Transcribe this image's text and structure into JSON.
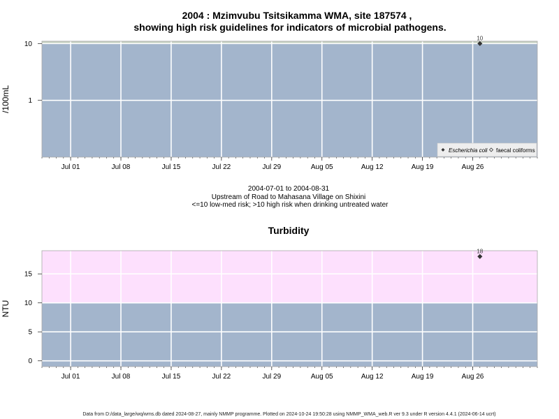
{
  "chart_data": [
    {
      "type": "scatter",
      "title_line1": "2004 : Mzimvubu Tsitsikamma WMA, site 187574 ,",
      "title_line2": "showing high risk guidelines for indicators of microbial pathogens.",
      "ylabel": "/100mL",
      "yscale": "log",
      "ylim": [
        0.1,
        11
      ],
      "yticks": [
        {
          "value": 1,
          "label": "1"
        },
        {
          "value": 10,
          "label": "10"
        }
      ],
      "xlim": [
        "2004-06-27",
        "2004-09-04"
      ],
      "xticks": [
        {
          "date": "2004-07-01",
          "label": "Jul 01"
        },
        {
          "date": "2004-07-08",
          "label": "Jul 08"
        },
        {
          "date": "2004-07-15",
          "label": "Jul 15"
        },
        {
          "date": "2004-07-22",
          "label": "Jul 22"
        },
        {
          "date": "2004-07-29",
          "label": "Jul 29"
        },
        {
          "date": "2004-08-05",
          "label": "Aug 05"
        },
        {
          "date": "2004-08-12",
          "label": "Aug 12"
        },
        {
          "date": "2004-08-19",
          "label": "Aug 19"
        },
        {
          "date": "2004-08-26",
          "label": "Aug 26"
        }
      ],
      "bands": [
        {
          "from": 0.1,
          "to": 10,
          "color": "#a3b5cc"
        },
        {
          "from": 10,
          "to": 11,
          "color": "#c8d3c3"
        }
      ],
      "series": [
        {
          "name": "Escherichia coli",
          "marker": "filled-diamond",
          "color": "#333333",
          "points": [
            {
              "x": "2004-08-27",
              "y": 10,
              "label": "10"
            }
          ]
        },
        {
          "name": "faecal coliforms",
          "marker": "open-diamond",
          "color": "#333333",
          "points": []
        }
      ],
      "legend_position": "bottom-right",
      "caption": [
        "2004-07-01 to 2004-08-31",
        "Upstream of Road to Mahasana Village on Shixini",
        "<=10 low-med risk; >10 high risk when drinking untreated water"
      ]
    },
    {
      "type": "scatter",
      "title": "Turbidity",
      "ylabel": "NTU",
      "yscale": "linear",
      "ylim": [
        -1,
        19
      ],
      "yticks": [
        {
          "value": 0,
          "label": "0"
        },
        {
          "value": 5,
          "label": "5"
        },
        {
          "value": 10,
          "label": "10"
        },
        {
          "value": 15,
          "label": "15"
        }
      ],
      "xlim": [
        "2004-06-27",
        "2004-09-04"
      ],
      "xticks": [
        {
          "date": "2004-07-01",
          "label": "Jul 01"
        },
        {
          "date": "2004-07-08",
          "label": "Jul 08"
        },
        {
          "date": "2004-07-15",
          "label": "Jul 15"
        },
        {
          "date": "2004-07-22",
          "label": "Jul 22"
        },
        {
          "date": "2004-07-29",
          "label": "Jul 29"
        },
        {
          "date": "2004-08-05",
          "label": "Aug 05"
        },
        {
          "date": "2004-08-12",
          "label": "Aug 12"
        },
        {
          "date": "2004-08-19",
          "label": "Aug 19"
        },
        {
          "date": "2004-08-26",
          "label": "Aug 26"
        }
      ],
      "bands": [
        {
          "from": -1,
          "to": 10,
          "color": "#a3b5cc"
        },
        {
          "from": 10,
          "to": 19,
          "color": "#fde0fd"
        }
      ],
      "series": [
        {
          "name": "",
          "marker": "filled-diamond",
          "color": "#333333",
          "points": [
            {
              "x": "2004-08-27",
              "y": 18,
              "label": "18"
            }
          ]
        }
      ]
    }
  ],
  "footer": "Data from D:/data_large/wq/wms.db dated 2024-08-27, mainly NMMP programme. Plotted on 2024-10-24 19:50:28 using NMMP_WMA_web.R ver 9.3 under R version 4.4.1 (2024-06-14 ucrt)"
}
